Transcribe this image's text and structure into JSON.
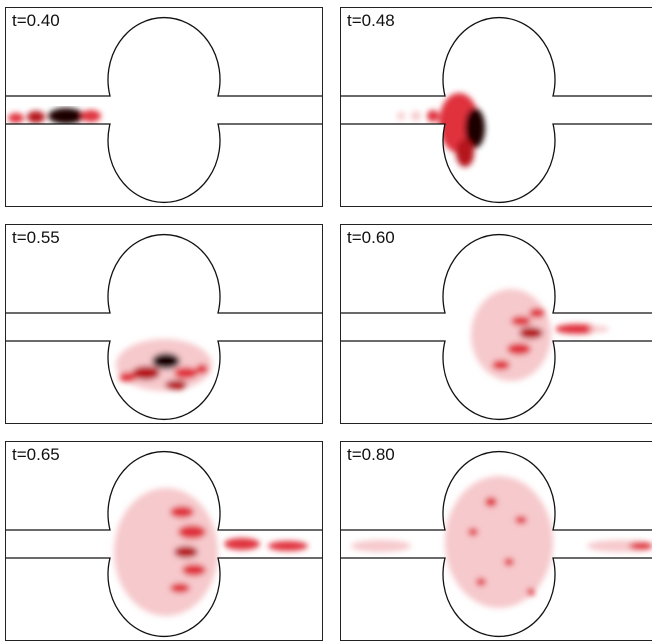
{
  "figure": {
    "panels": [
      {
        "label": "t=0.40"
      },
      {
        "label": "t=0.48"
      },
      {
        "label": "t=0.55"
      },
      {
        "label": "t=0.60"
      },
      {
        "label": "t=0.65"
      },
      {
        "label": "t=0.80"
      }
    ],
    "colors": {
      "wave_light": "#f6c9cc",
      "wave_mid": "#e0323c",
      "wave_strong": "#b5121b",
      "wave_peak": "#1a0000",
      "outline": "#111111"
    }
  }
}
